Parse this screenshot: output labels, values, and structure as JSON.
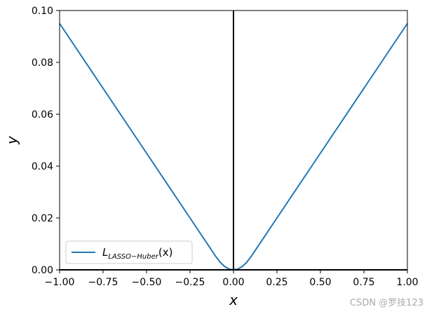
{
  "chart_data": {
    "type": "line",
    "xlabel": "x",
    "ylabel": "y",
    "x": [
      -1,
      -0.75,
      -0.5,
      -0.25,
      -0.1,
      -0.075,
      -0.05,
      -0.025,
      0,
      0.025,
      0.05,
      0.075,
      0.1,
      0.25,
      0.5,
      0.75,
      1
    ],
    "series": [
      {
        "color": "#1f77b4",
        "values": [
          0.095,
          0.07,
          0.045,
          0.02,
          0.005,
          0.0028125,
          0.00125,
          0.0003125,
          0,
          0.0003125,
          0.00125,
          0.0028125,
          0.005,
          0.02,
          0.045,
          0.07,
          0.095
        ]
      }
    ],
    "legend_label": {
      "main": "L",
      "sub": "LASSO−Huber",
      "tail": "(x)"
    },
    "legend_loc": "lower left",
    "xlim": [
      -1,
      1
    ],
    "ylim": [
      0,
      0.1
    ],
    "xticks": [
      {
        "value": -1,
        "label": "−1.00"
      },
      {
        "value": -0.75,
        "label": "−0.75"
      },
      {
        "value": -0.5,
        "label": "−0.50"
      },
      {
        "value": -0.25,
        "label": "−0.25"
      },
      {
        "value": 0,
        "label": "0.00"
      },
      {
        "value": 0.25,
        "label": "0.25"
      },
      {
        "value": 0.5,
        "label": "0.50"
      },
      {
        "value": 0.75,
        "label": "0.75"
      },
      {
        "value": 1,
        "label": "1.00"
      }
    ],
    "yticks": [
      {
        "value": 0,
        "label": "0.00"
      },
      {
        "value": 0.02,
        "label": "0.02"
      },
      {
        "value": 0.04,
        "label": "0.04"
      },
      {
        "value": 0.06,
        "label": "0.06"
      },
      {
        "value": 0.08,
        "label": "0.08"
      },
      {
        "value": 0.1,
        "label": "0.10"
      }
    ],
    "vline": 0,
    "hline": 0,
    "watermark": "CSDN @罗技123"
  }
}
